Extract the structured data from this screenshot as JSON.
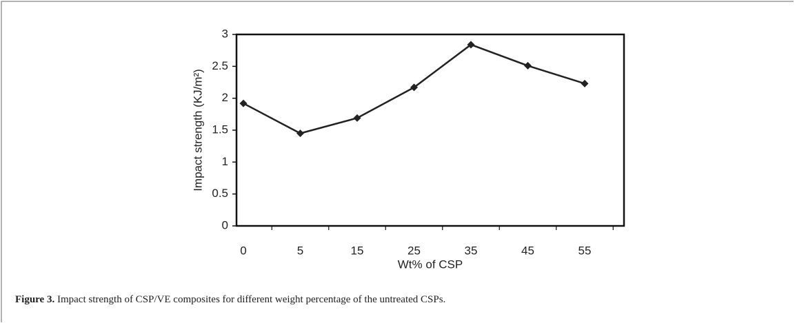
{
  "chart_data": {
    "type": "line",
    "categories": [
      "0",
      "5",
      "15",
      "25",
      "35",
      "45",
      "55"
    ],
    "series": [
      {
        "name": "Impact strength",
        "color": "#222222",
        "values": [
          1.92,
          1.45,
          1.69,
          2.17,
          2.84,
          2.51,
          2.23
        ]
      }
    ],
    "xlabel": "Wt% of CSP",
    "ylabel": "Impact strength (KJ/m²)",
    "ylim": [
      0,
      3
    ],
    "yticks": [
      0,
      0.5,
      1,
      1.5,
      2,
      2.5,
      3
    ],
    "grid": false,
    "caption_label": "Figure 3.",
    "caption_text": "Impact strength of CSP/VE composites for different weight percentage of the untreated CSPs."
  }
}
